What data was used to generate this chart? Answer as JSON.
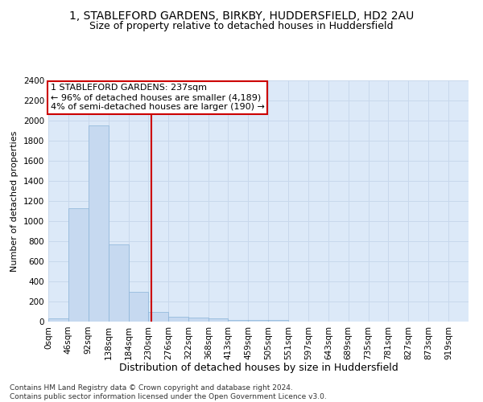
{
  "title1": "1, STABLEFORD GARDENS, BIRKBY, HUDDERSFIELD, HD2 2AU",
  "title2": "Size of property relative to detached houses in Huddersfield",
  "xlabel": "Distribution of detached houses by size in Huddersfield",
  "ylabel": "Number of detached properties",
  "bin_labels": [
    "0sqm",
    "46sqm",
    "92sqm",
    "138sqm",
    "184sqm",
    "230sqm",
    "276sqm",
    "322sqm",
    "368sqm",
    "413sqm",
    "459sqm",
    "505sqm",
    "551sqm",
    "597sqm",
    "643sqm",
    "689sqm",
    "735sqm",
    "781sqm",
    "827sqm",
    "873sqm",
    "919sqm"
  ],
  "bin_edges": [
    0,
    46,
    92,
    138,
    184,
    230,
    276,
    322,
    368,
    413,
    459,
    505,
    551,
    597,
    643,
    689,
    735,
    781,
    827,
    873,
    919,
    965
  ],
  "bar_values": [
    35,
    1130,
    1950,
    770,
    300,
    100,
    47,
    40,
    30,
    20,
    15,
    20,
    0,
    0,
    0,
    0,
    0,
    0,
    0,
    0,
    0
  ],
  "bar_color": "#c6d9f0",
  "bar_edgecolor": "#8ab4d8",
  "grid_color": "#c8d8ec",
  "background_color": "#dce9f8",
  "vline_x": 237,
  "vline_color": "#cc0000",
  "ylim": [
    0,
    2400
  ],
  "yticks": [
    0,
    200,
    400,
    600,
    800,
    1000,
    1200,
    1400,
    1600,
    1800,
    2000,
    2200,
    2400
  ],
  "annotation_title": "1 STABLEFORD GARDENS: 237sqm",
  "annotation_line1": "← 96% of detached houses are smaller (4,189)",
  "annotation_line2": "4% of semi-detached houses are larger (190) →",
  "annotation_box_facecolor": "#ffffff",
  "annotation_box_edgecolor": "#cc0000",
  "footer_line1": "Contains HM Land Registry data © Crown copyright and database right 2024.",
  "footer_line2": "Contains public sector information licensed under the Open Government Licence v3.0.",
  "title_fontsize": 10,
  "subtitle_fontsize": 9,
  "xlabel_fontsize": 9,
  "ylabel_fontsize": 8,
  "tick_fontsize": 7.5,
  "annotation_fontsize": 8,
  "footer_fontsize": 6.5
}
